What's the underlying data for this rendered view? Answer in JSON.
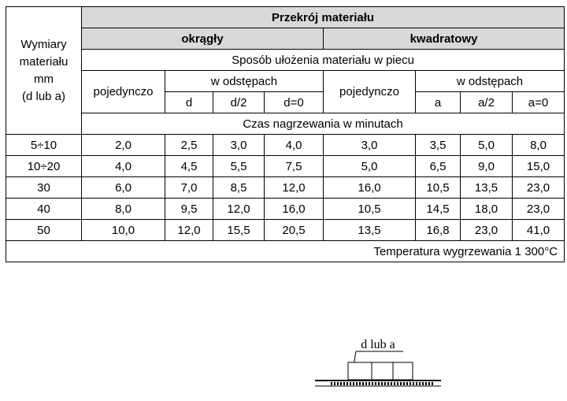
{
  "header": {
    "corner": [
      "Wymiary",
      "materiału",
      "mm",
      "(d lub a)"
    ],
    "title": "Przekrój materiału",
    "arrangement": "Sposób ułożenia materiału w piecu",
    "time": "Czas nagrzewania w minutach",
    "groups": [
      {
        "name": "okrągły",
        "single": "pojedynczo",
        "spaced": "w odstępach",
        "spacings": [
          "d",
          "d/2",
          "d=0"
        ]
      },
      {
        "name": "kwadratowy",
        "single": "pojedynczo",
        "spaced": "w odstępach",
        "spacings": [
          "a",
          "a/2",
          "a=0"
        ]
      }
    ]
  },
  "table": {
    "rows": [
      [
        "5÷10",
        "2,0",
        "2,5",
        "3,0",
        "4,0",
        "3,0",
        "3,5",
        "5,0",
        "8,0"
      ],
      [
        "10÷20",
        "4,0",
        "4,5",
        "5,5",
        "7,5",
        "5,0",
        "6,5",
        "9,0",
        "15,0"
      ],
      [
        "30",
        "6,0",
        "7,0",
        "8,5",
        "12,0",
        "16,0",
        "10,5",
        "13,5",
        "23,0"
      ],
      [
        "40",
        "8,0",
        "9,5",
        "12,0",
        "16,0",
        "10,5",
        "14,5",
        "18,0",
        "23,0"
      ],
      [
        "50",
        "10,0",
        "12,0",
        "15,5",
        "20,5",
        "13,5",
        "16,8",
        "23,0",
        "41,0"
      ]
    ],
    "footer": "Temperatura wygrzewania 1 300°C"
  },
  "diagram": {
    "label": "d lub a"
  }
}
